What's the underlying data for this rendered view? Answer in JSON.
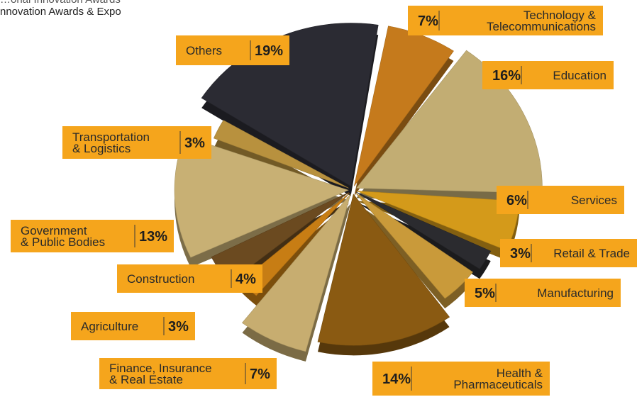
{
  "header": {
    "line1": "…onal Innovation Awards",
    "line2": "nnovation Awards & Expo"
  },
  "chart_data": {
    "type": "pie",
    "title": "",
    "slices": [
      {
        "label": "Technology & Telecommunications",
        "value": 7,
        "value_label": "7%",
        "color": "#c57a1c"
      },
      {
        "label": "Education",
        "value": 16,
        "value_label": "16%",
        "color": "#c2ad73"
      },
      {
        "label": "Services",
        "value": 6,
        "value_label": "6%",
        "color": "#d49a1a"
      },
      {
        "label": "Retail & Trade",
        "value": 3,
        "value_label": "3%",
        "color": "#2b2b2f"
      },
      {
        "label": "Manufacturing",
        "value": 5,
        "value_label": "5%",
        "color": "#c99a3a"
      },
      {
        "label": "Health & Pharmaceuticals",
        "value": 14,
        "value_label": "14%",
        "color": "#8a5a12"
      },
      {
        "label": "Finance, Insurance & Real Estate",
        "value": 7,
        "value_label": "7%",
        "color": "#c7ad70"
      },
      {
        "label": "Agriculture",
        "value": 3,
        "value_label": "3%",
        "color": "#c77d14"
      },
      {
        "label": "Construction",
        "value": 4,
        "value_label": "4%",
        "color": "#6b4a20"
      },
      {
        "label": "Government & Public Bodies",
        "value": 13,
        "value_label": "13%",
        "color": "#c8b074"
      },
      {
        "label": "Transportation & Logistics",
        "value": 3,
        "value_label": "3%",
        "color": "#b8913e"
      },
      {
        "label": "Others",
        "value": 19,
        "value_label": "19%",
        "color": "#2b2b33"
      }
    ],
    "label_box_color": "#f5a51c"
  }
}
